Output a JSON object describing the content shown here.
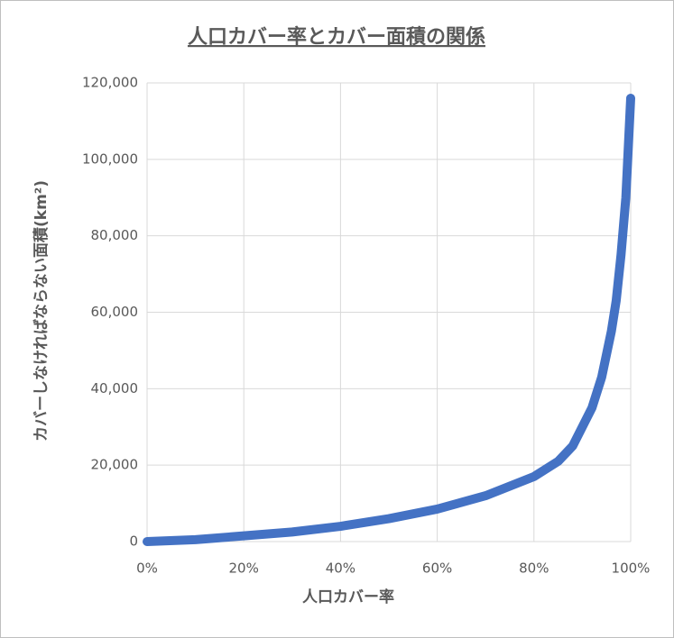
{
  "chart_data": {
    "type": "line",
    "title": "人口カバー率とカバー面積の関係",
    "x_label": "人口カバー率",
    "y_label": "カバーしなければならない面積(km²)",
    "x": [
      0,
      10,
      20,
      30,
      40,
      50,
      60,
      70,
      80,
      85,
      88,
      90,
      92,
      94,
      96,
      97,
      98,
      99,
      100
    ],
    "values": [
      0,
      500,
      1500,
      2500,
      4000,
      6000,
      8500,
      12000,
      17000,
      21000,
      25000,
      30000,
      35000,
      43000,
      55000,
      63000,
      75000,
      90000,
      116000
    ],
    "color": "#4472c4",
    "xlim": [
      0,
      100
    ],
    "xticks": [
      {
        "value": 0,
        "label": "0%"
      },
      {
        "value": 20,
        "label": "20%"
      },
      {
        "value": 40,
        "label": "40%"
      },
      {
        "value": 60,
        "label": "60%"
      },
      {
        "value": 80,
        "label": "80%"
      },
      {
        "value": 100,
        "label": "100%"
      }
    ],
    "ylim": [
      0,
      120000
    ],
    "yticks": [
      0,
      {
        "value": 20000,
        "label": "20,000"
      },
      {
        "value": 40000,
        "label": "40,000"
      },
      {
        "value": 60000,
        "label": "60,000"
      },
      {
        "value": 80000,
        "label": "80,000"
      },
      {
        "value": 100000,
        "label": "100,000"
      },
      {
        "value": 120000,
        "label": "120,000"
      }
    ],
    "grid": true
  }
}
